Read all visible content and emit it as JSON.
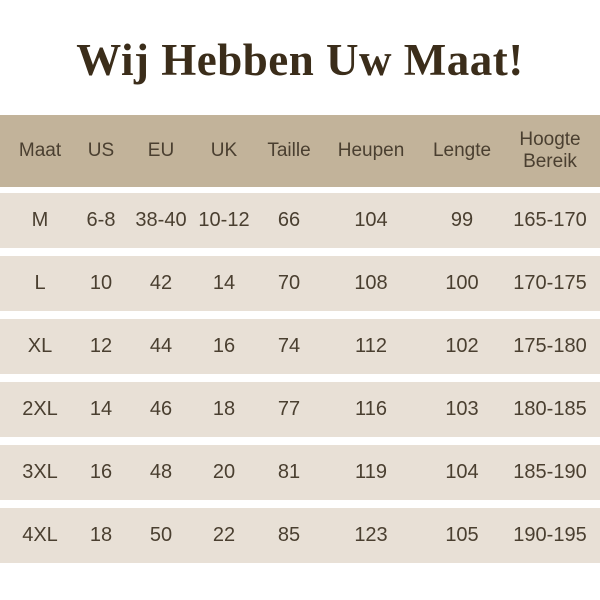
{
  "title": "Wij Hebben Uw Maat!",
  "colors": {
    "header_bg": "#c2b39a",
    "row_bg": "#e8e0d6",
    "title": "#3b2d1a",
    "text": "#4a3f30"
  },
  "columns": [
    "Maat",
    "US",
    "EU",
    "UK",
    "Taille",
    "Heupen",
    "Lengte",
    "Hoogte Bereik"
  ],
  "rows": [
    [
      "M",
      "6-8",
      "38-40",
      "10-12",
      "66",
      "104",
      "99",
      "165-170"
    ],
    [
      "L",
      "10",
      "42",
      "14",
      "70",
      "108",
      "100",
      "170-175"
    ],
    [
      "XL",
      "12",
      "44",
      "16",
      "74",
      "112",
      "102",
      "175-180"
    ],
    [
      "2XL",
      "14",
      "46",
      "18",
      "77",
      "116",
      "103",
      "180-185"
    ],
    [
      "3XL",
      "16",
      "48",
      "20",
      "81",
      "119",
      "104",
      "185-190"
    ],
    [
      "4XL",
      "18",
      "50",
      "22",
      "85",
      "123",
      "105",
      "190-195"
    ]
  ]
}
